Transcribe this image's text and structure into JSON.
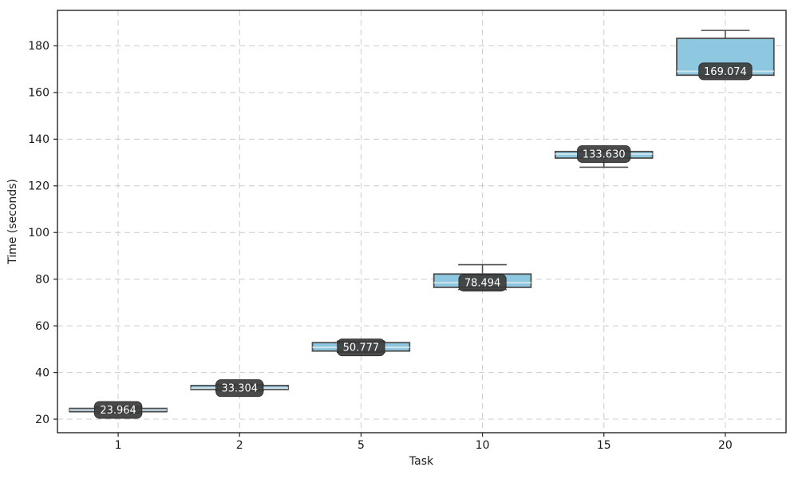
{
  "page": {
    "background": "#ffffff"
  },
  "chart_data": {
    "type": "boxplot",
    "title": "",
    "xlabel": "Task",
    "ylabel": "Time (seconds)",
    "categories": [
      "1",
      "2",
      "5",
      "10",
      "15",
      "20"
    ],
    "ylim": [
      14.2,
      195.2
    ],
    "yticks": [
      20,
      40,
      60,
      80,
      100,
      120,
      140,
      160,
      180
    ],
    "grid": true,
    "legend": "none",
    "boxes": [
      {
        "category": "1",
        "whisker_low": 22.5,
        "q1": 23.2,
        "median": 23.964,
        "q3": 24.6,
        "whisker_high": 25.3,
        "label": "23.964"
      },
      {
        "category": "2",
        "whisker_low": 32.2,
        "q1": 32.7,
        "median": 33.304,
        "q3": 34.4,
        "whisker_high": 34.9,
        "label": "33.304"
      },
      {
        "category": "5",
        "whisker_low": 48.7,
        "q1": 49.2,
        "median": 50.777,
        "q3": 52.8,
        "whisker_high": 53.4,
        "label": "50.777"
      },
      {
        "category": "10",
        "whisker_low": 75.6,
        "q1": 76.5,
        "median": 78.494,
        "q3": 82.2,
        "whisker_high": 86.2,
        "label": "78.494"
      },
      {
        "category": "15",
        "whisker_low": 128.0,
        "q1": 131.9,
        "median": 133.63,
        "q3": 134.7,
        "whisker_high": 135.2,
        "label": "133.630"
      },
      {
        "category": "20",
        "whisker_low": 166.5,
        "q1": 167.4,
        "median": 169.074,
        "q3": 183.2,
        "whisker_high": 186.6,
        "label": "169.074"
      }
    ],
    "colors": {
      "box_fill": "#8ec8e0",
      "box_edge": "#4f4f4f",
      "whisker": "#4f4f4f",
      "median_line": "#cfe3ec",
      "grid": "#cccccc",
      "annotation_bg": "#3b3b3b",
      "annotation_border": "#242424",
      "annotation_text": "#ffffff",
      "axis": "#262626",
      "tick_text": "#1a1a1a"
    }
  }
}
